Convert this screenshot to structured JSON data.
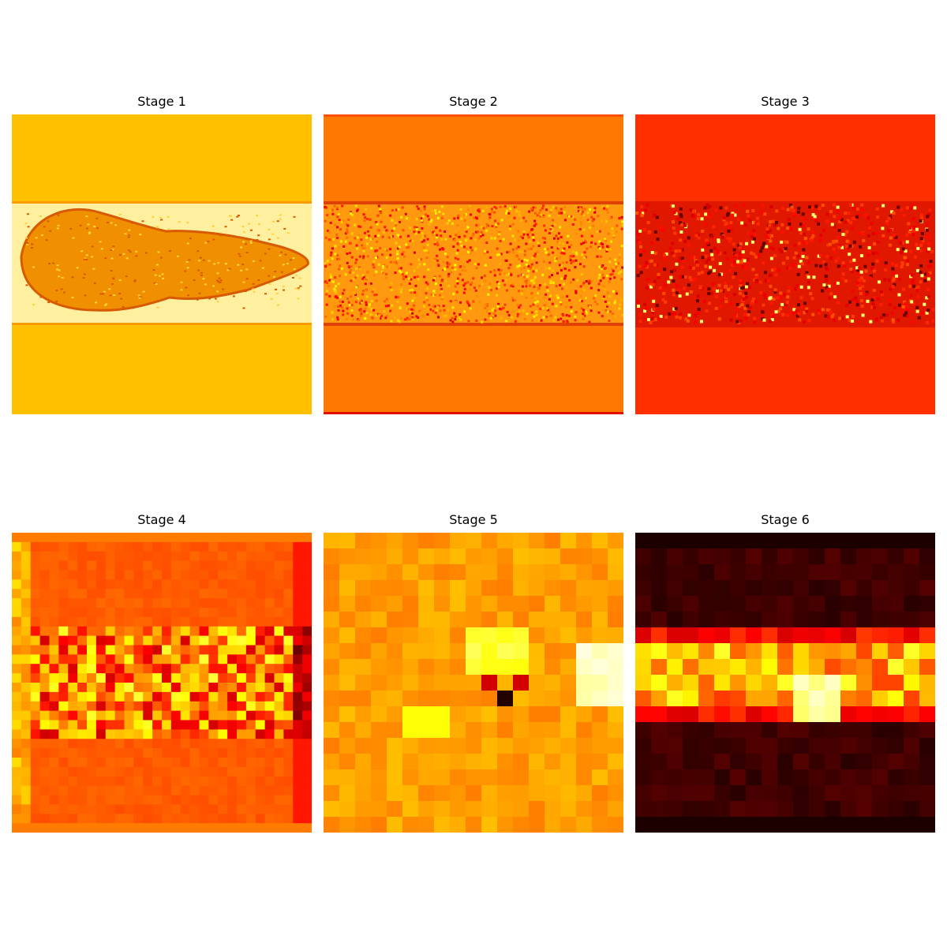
{
  "chart_data": [
    {
      "type": "heatmap",
      "title": "Stage 1",
      "colormap": "hot",
      "grid": false,
      "axes": "off",
      "resolution": "high",
      "content": "feature map of a skull-shaped specimen on a uniform background band",
      "base_color": "#ffc000",
      "band_color": "#fff0a0",
      "feature_color": "#d85a00"
    },
    {
      "type": "heatmap",
      "title": "Stage 2",
      "colormap": "hot",
      "grid": false,
      "axes": "off",
      "resolution": "high",
      "content": "noisy textured middle band between two uniform bands",
      "base_color": "#ff7800",
      "band_color": "#ff9a10"
    },
    {
      "type": "heatmap",
      "title": "Stage 3",
      "colormap": "hot",
      "grid": false,
      "axes": "off",
      "resolution": "medium",
      "content": "speckled middle band with bright yellow and dark red activations",
      "base_color": "#ff3000",
      "band_color": "#e01800"
    },
    {
      "type": "heatmap",
      "title": "Stage 4",
      "colormap": "hot",
      "grid": false,
      "axes": "off",
      "resolution": "approx 32x32 cells",
      "content": "checkered activation band with vertical edge stripes",
      "base_color": "#ff7a00",
      "band_color": "#ff5a00"
    },
    {
      "type": "heatmap",
      "title": "Stage 5",
      "colormap": "hot",
      "grid": false,
      "axes": "off",
      "resolution": "approx 19x19 cells",
      "content": "coarse orange map with bright yellow region at right and a dark spot near center",
      "base_color": "#ff9a00",
      "band_color": "#ffb000"
    },
    {
      "type": "heatmap",
      "title": "Stage 6",
      "colormap": "hot",
      "grid": false,
      "axes": "off",
      "resolution": "approx 19x19 cells",
      "content": "dark map with bright horizontal activation band across the middle",
      "base_color": "#180000",
      "band_color": "#ff8800"
    }
  ]
}
